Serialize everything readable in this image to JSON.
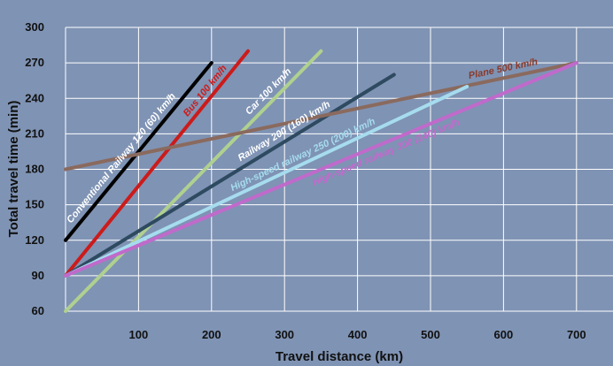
{
  "chart_data": {
    "type": "line",
    "title": "",
    "xlabel": "Travel distance (km)",
    "ylabel": "Total travel time (min)",
    "xlim": [
      0,
      750
    ],
    "ylim": [
      60,
      300
    ],
    "x_ticks": [
      100,
      200,
      300,
      400,
      500,
      600,
      700
    ],
    "y_ticks": [
      60,
      90,
      120,
      150,
      180,
      210,
      240,
      270,
      300
    ],
    "grid": true,
    "legend": "none",
    "colors": {
      "background": "#7f93b4",
      "grid": "#ffffff"
    },
    "series": [
      {
        "name": "Conventional Railway 120 (60) km/h",
        "color": "#000000",
        "x": [
          0,
          200
        ],
        "y": [
          120,
          270
        ]
      },
      {
        "name": "Bus 100 km/h",
        "color": "#cc1b1b",
        "x": [
          0,
          250
        ],
        "y": [
          90,
          280
        ]
      },
      {
        "name": "Car 100 km/h",
        "color": "#b0d08f",
        "x": [
          0,
          350
        ],
        "y": [
          60,
          280
        ]
      },
      {
        "name": "Railway 200 (160) km/h",
        "color": "#2e4a60",
        "x": [
          0,
          450
        ],
        "y": [
          90,
          260
        ]
      },
      {
        "name": "Plane 500 km/h",
        "color": "#8a6a5e",
        "x": [
          0,
          700
        ],
        "y": [
          180,
          270
        ]
      },
      {
        "name": "High-speed railway 250 (200) km/h",
        "color": "#a6dcee",
        "x": [
          0,
          550
        ],
        "y": [
          90,
          250
        ]
      },
      {
        "name": "High-speed railway 300 (240) km/h",
        "color": "#c06acb",
        "x": [
          0,
          700
        ],
        "y": [
          90,
          270
        ]
      }
    ]
  }
}
